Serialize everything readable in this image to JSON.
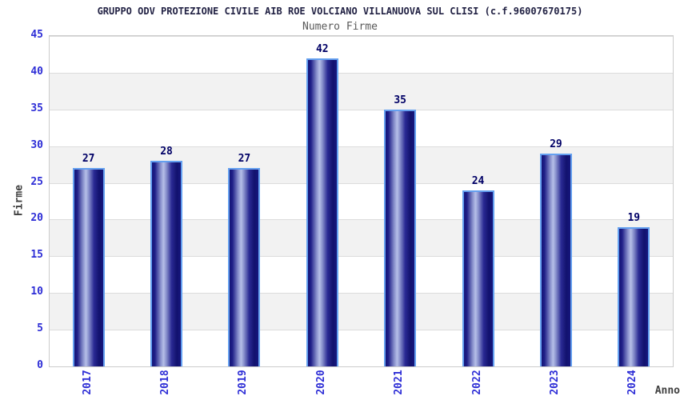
{
  "title": "GRUPPO ODV PROTEZIONE CIVILE AIB ROE VOLCIANO VILLANUOVA SUL CLISI (c.f.96007670175)",
  "subtitle": "Numero Firme",
  "chart_data": {
    "type": "bar",
    "title": "GRUPPO ODV PROTEZIONE CIVILE AIB ROE VOLCIANO VILLANUOVA SUL CLISI (c.f.96007670175)",
    "subtitle": "Numero Firme",
    "categories": [
      "2017",
      "2018",
      "2019",
      "2020",
      "2021",
      "2022",
      "2023",
      "2024"
    ],
    "values": [
      27,
      28,
      27,
      42,
      35,
      24,
      29,
      19
    ],
    "xlabel": "Anno",
    "ylabel": "Firme",
    "ylim": [
      0,
      45
    ],
    "ytick_step": 5,
    "yticks": [
      0,
      5,
      10,
      15,
      20,
      25,
      30,
      35,
      40,
      45
    ],
    "grid": true,
    "alternating_bands": true,
    "legend": "none"
  },
  "colors": {
    "title_text": "#222244",
    "subtitle_text": "#595959",
    "tick_label": "#2d2dd6",
    "value_label": "#000066",
    "axis_title": "#404040",
    "band_gray": "#f2f2f2",
    "band_white": "#ffffff",
    "grid_line": "#dcdcdc",
    "plot_border": "#cccccc",
    "bar_border": "#64a0f0",
    "bar_dark": "#141476",
    "bar_highlight": "#b6bfe8"
  }
}
